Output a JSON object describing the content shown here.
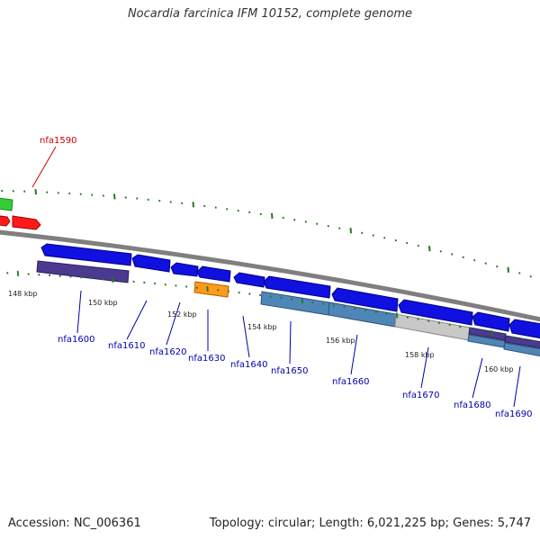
{
  "title": "Nocardia farcinica IFM 10152, complete genome",
  "footer": {
    "accession": "Accession: NC_006361",
    "topology": "Topology: circular; Length: 6,021,225 bp; Genes: 5,747"
  },
  "colors": {
    "backbone": "#7a7a7a",
    "gc_tick": "#1f7a1f",
    "label_reverse": "#cc0000",
    "label_forward": "#0000aa"
  },
  "scale_labels": [
    "148 kbp",
    "150 kbp",
    "152 kbp",
    "154 kbp",
    "156 kbp",
    "158 kbp",
    "160 kbp"
  ],
  "gene_labels": [
    {
      "text": "nfa1590",
      "color": "#cc0000"
    },
    {
      "text": "nfa1600",
      "color": "#0000aa"
    },
    {
      "text": "nfa1610",
      "color": "#0000aa"
    },
    {
      "text": "nfa1620",
      "color": "#0000aa"
    },
    {
      "text": "nfa1630",
      "color": "#0000aa"
    },
    {
      "text": "nfa1640",
      "color": "#0000aa"
    },
    {
      "text": "nfa1650",
      "color": "#0000aa"
    },
    {
      "text": "nfa1660",
      "color": "#0000aa"
    },
    {
      "text": "nfa1670",
      "color": "#0000aa"
    },
    {
      "text": "nfa1680",
      "color": "#0000aa"
    },
    {
      "text": "nfa1690",
      "color": "#0000aa"
    }
  ]
}
